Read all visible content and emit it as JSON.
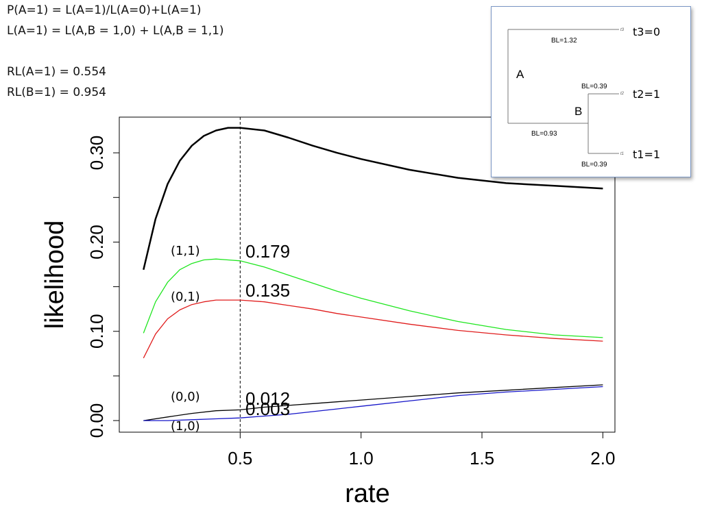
{
  "header_text": {
    "line1": "P(A=1) = L(A=1)/L(A=0)+L(A=1)",
    "line2": "L(A=1) = L(A,B = 1,0) + L(A,B = 1,1)",
    "line3": "RL(A=1) = 0.554",
    "line4": "RL(B=1) = 0.954"
  },
  "chart_data": {
    "type": "line",
    "xlabel": "rate",
    "ylabel": "likelihood",
    "xlim": [
      0.0,
      2.05
    ],
    "ylim": [
      -0.013,
      0.34
    ],
    "x_ticks": [
      "0.5",
      "1.0",
      "1.5",
      "2.0"
    ],
    "y_ticks": [
      "0.00",
      "0.10",
      "0.20",
      "0.30"
    ],
    "y_minor_ticks": [
      0.05,
      0.15,
      0.25
    ],
    "vline_x": 0.5,
    "series": [
      {
        "name": "",
        "color": "#000000",
        "width": 2.5,
        "x": [
          0.1,
          0.15,
          0.2,
          0.25,
          0.3,
          0.35,
          0.4,
          0.45,
          0.5,
          0.6,
          0.7,
          0.8,
          0.9,
          1.0,
          1.2,
          1.4,
          1.6,
          1.8,
          2.0
        ],
        "y": [
          0.169,
          0.226,
          0.265,
          0.291,
          0.308,
          0.319,
          0.325,
          0.328,
          0.328,
          0.325,
          0.317,
          0.308,
          0.3,
          0.293,
          0.281,
          0.272,
          0.266,
          0.263,
          0.26
        ]
      },
      {
        "name": "(1,1)",
        "color": "#1ee61e",
        "width": 1.3,
        "x": [
          0.1,
          0.15,
          0.2,
          0.25,
          0.3,
          0.35,
          0.4,
          0.45,
          0.5,
          0.6,
          0.7,
          0.8,
          0.9,
          1.0,
          1.2,
          1.4,
          1.6,
          1.8,
          2.0
        ],
        "y": [
          0.098,
          0.133,
          0.155,
          0.169,
          0.176,
          0.18,
          0.181,
          0.18,
          0.179,
          0.172,
          0.163,
          0.154,
          0.145,
          0.137,
          0.123,
          0.111,
          0.102,
          0.096,
          0.093
        ]
      },
      {
        "name": "(0,1)",
        "color": "#e01b1b",
        "width": 1.3,
        "x": [
          0.1,
          0.15,
          0.2,
          0.25,
          0.3,
          0.35,
          0.4,
          0.45,
          0.5,
          0.6,
          0.7,
          0.8,
          0.9,
          1.0,
          1.2,
          1.4,
          1.6,
          1.8,
          2.0
        ],
        "y": [
          0.07,
          0.097,
          0.114,
          0.124,
          0.13,
          0.133,
          0.135,
          0.135,
          0.135,
          0.133,
          0.129,
          0.125,
          0.12,
          0.116,
          0.108,
          0.101,
          0.096,
          0.092,
          0.089
        ]
      },
      {
        "name": "(0,0)",
        "color": "#000000",
        "width": 1.3,
        "x": [
          0.1,
          0.2,
          0.3,
          0.4,
          0.5,
          0.6,
          0.7,
          0.8,
          0.9,
          1.0,
          1.2,
          1.4,
          1.6,
          1.8,
          2.0
        ],
        "y": [
          0.0,
          0.004,
          0.008,
          0.011,
          0.012,
          0.015,
          0.017,
          0.019,
          0.021,
          0.023,
          0.027,
          0.031,
          0.034,
          0.037,
          0.04
        ]
      },
      {
        "name": "(1,0)",
        "color": "#1414c8",
        "width": 1.3,
        "x": [
          0.1,
          0.2,
          0.3,
          0.4,
          0.5,
          0.6,
          0.7,
          0.8,
          0.9,
          1.0,
          1.2,
          1.4,
          1.6,
          1.8,
          2.0
        ],
        "y": [
          0.0,
          0.0,
          0.001,
          0.002,
          0.003,
          0.005,
          0.007,
          0.01,
          0.013,
          0.016,
          0.022,
          0.028,
          0.032,
          0.035,
          0.038
        ]
      }
    ],
    "annotations": [
      "0.179",
      "0.135",
      "0.012",
      "0.003"
    ]
  },
  "tree_inset": {
    "tips": {
      "t3": "t3=0",
      "t2": "t2=1",
      "t1": "t1=1"
    },
    "tip_small": {
      "t3": "t3",
      "t2": "t2",
      "t1": "t1"
    },
    "nodes": {
      "A": "A",
      "B": "B"
    },
    "branch_labels": {
      "a_t3": "BL=1.32",
      "b_t2": "BL=0.39",
      "a_b": "BL=0.93",
      "b_t1": "BL=0.39"
    }
  }
}
